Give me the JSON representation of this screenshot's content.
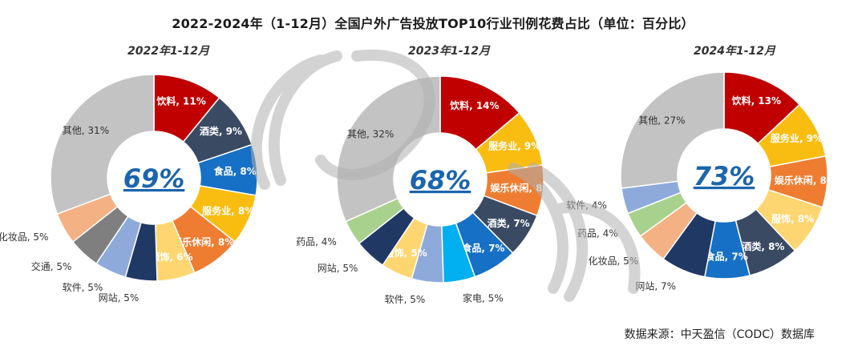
{
  "title": "2022-2024年（1-12月）全国户外广告投放TOP10行业刊例花费占比（单位：百分比）",
  "source": "数据来源：中天盈信（CODC）数据库",
  "watermark_text": "codc",
  "colors": {
    "饮料": "#c00000",
    "酒类": "#3b4a63",
    "食品": "#1670c6",
    "服务业": "#f9bd12",
    "娱乐休闲": "#ee7d31",
    "服饰": "#fdd671",
    "网站": "#203864",
    "软件": "#8eaadb",
    "交通": "#7f7f7f",
    "化妆品": "#f4b183",
    "药品": "#a9d18e",
    "家电": "#00b0f0",
    "其他": "#c3c3c3"
  },
  "chart_data": [
    {
      "type": "pie",
      "subtitle": "2022年1-12月",
      "center_value": "69%",
      "labels": [
        "饮料",
        "酒类",
        "食品",
        "服务业",
        "娱乐休闲",
        "服饰",
        "网站",
        "软件",
        "交通",
        "化妆品",
        "其他"
      ],
      "values": [
        11,
        9,
        8,
        8,
        8,
        6,
        5,
        5,
        5,
        5,
        31
      ]
    },
    {
      "type": "pie",
      "subtitle": "2023年1-12月",
      "center_value": "68%",
      "labels": [
        "饮料",
        "服务业",
        "娱乐休闲",
        "酒类",
        "食品",
        "家电",
        "软件",
        "服饰",
        "网站",
        "药品",
        "其他"
      ],
      "values": [
        14,
        9,
        8,
        7,
        7,
        5,
        5,
        5,
        5,
        4,
        32
      ]
    },
    {
      "type": "pie",
      "subtitle": "2024年1-12月",
      "center_value": "73%",
      "labels": [
        "饮料",
        "服务业",
        "娱乐休闲",
        "服饰",
        "酒类",
        "食品",
        "网站",
        "化妆品",
        "药品",
        "软件",
        "其他"
      ],
      "values": [
        13,
        9,
        8,
        8,
        8,
        7,
        7,
        5,
        4,
        4,
        27
      ]
    }
  ]
}
